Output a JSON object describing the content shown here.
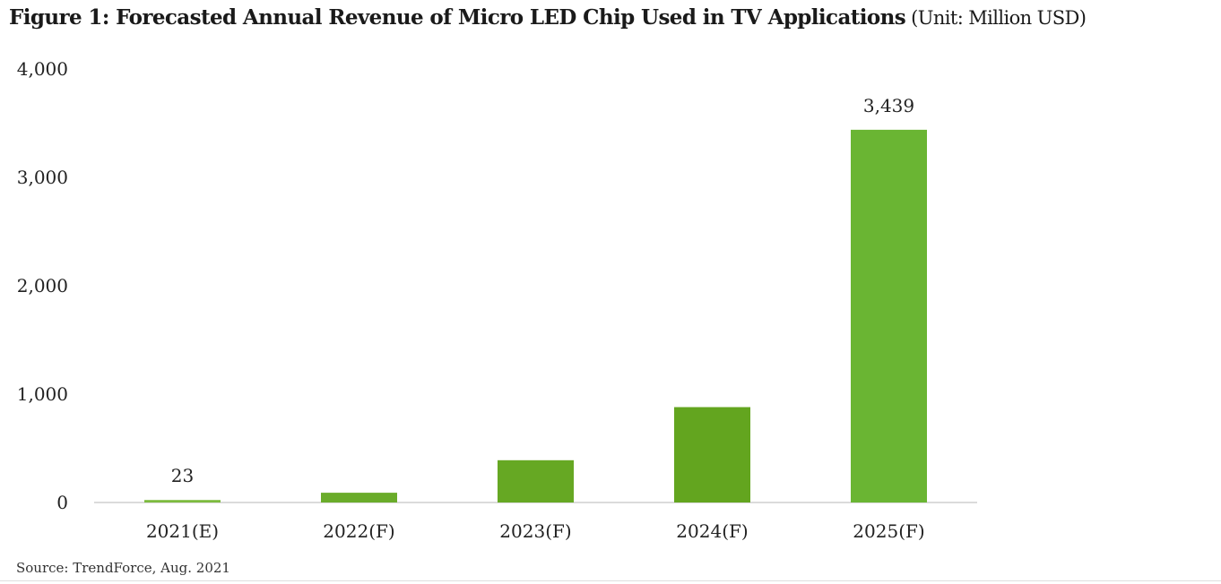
{
  "chart_data": {
    "type": "bar",
    "title": "Figure 1: Forecasted Annual Revenue of Micro LED Chip Used in TV Applications",
    "unit_label": "(Unit: Million USD)",
    "categories": [
      "2021(E)",
      "2022(F)",
      "2023(F)",
      "2024(F)",
      "2025(F)"
    ],
    "values": [
      23,
      90,
      390,
      880,
      3439
    ],
    "data_labels": [
      "23",
      "",
      "",
      "",
      "3,439"
    ],
    "ylim": [
      0,
      4000
    ],
    "yticks": [
      0,
      1000,
      2000,
      3000,
      4000
    ],
    "ytick_labels": [
      "0",
      "1,000",
      "2,000",
      "3,000",
      "4,000"
    ],
    "grid": false,
    "bar_colors": [
      "#7dbb3f",
      "#6aac2a",
      "#66a823",
      "#63a51f",
      "#6ab533"
    ]
  },
  "source": "Source: TrendForce, Aug. 2021"
}
